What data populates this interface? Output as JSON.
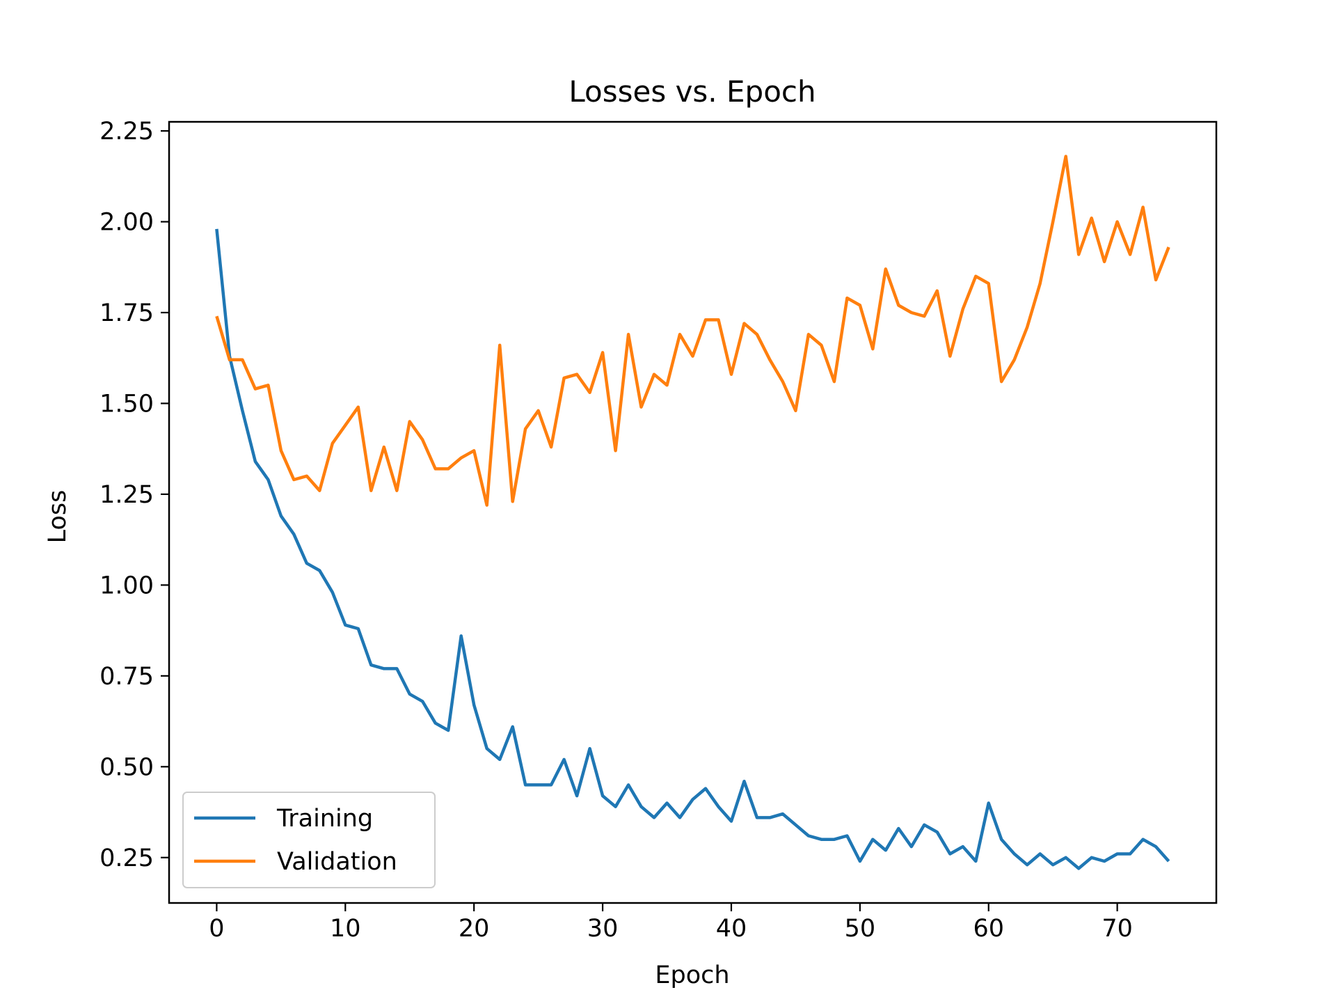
{
  "chart_data": {
    "type": "line",
    "title": "Losses vs. Epoch",
    "xlabel": "Epoch",
    "ylabel": "Loss",
    "xlim": [
      -3.7,
      77.7
    ],
    "ylim": [
      0.125,
      2.275
    ],
    "xticks": [
      0,
      10,
      20,
      30,
      40,
      50,
      60,
      70
    ],
    "xtick_labels": [
      "0",
      "10",
      "20",
      "30",
      "40",
      "50",
      "60",
      "70"
    ],
    "yticks": [
      0.25,
      0.5,
      0.75,
      1.0,
      1.25,
      1.5,
      1.75,
      2.0,
      2.25
    ],
    "ytick_labels": [
      "0.25",
      "0.50",
      "0.75",
      "1.00",
      "1.25",
      "1.50",
      "1.75",
      "2.00",
      "2.25"
    ],
    "grid": false,
    "legend_position": "lower-left",
    "x": [
      0,
      1,
      2,
      3,
      4,
      5,
      6,
      7,
      8,
      9,
      10,
      11,
      12,
      13,
      14,
      15,
      16,
      17,
      18,
      19,
      20,
      21,
      22,
      23,
      24,
      25,
      26,
      27,
      28,
      29,
      30,
      31,
      32,
      33,
      34,
      35,
      36,
      37,
      38,
      39,
      40,
      41,
      42,
      43,
      44,
      45,
      46,
      47,
      48,
      49,
      50,
      51,
      52,
      53,
      54,
      55,
      56,
      57,
      58,
      59,
      60,
      61,
      62,
      63,
      64,
      65,
      66,
      67,
      68,
      69,
      70,
      71,
      72,
      73,
      74
    ],
    "series": [
      {
        "name": "Training",
        "color": "#1f77b4",
        "values": [
          1.98,
          1.63,
          1.48,
          1.34,
          1.29,
          1.19,
          1.14,
          1.06,
          1.04,
          0.98,
          0.89,
          0.88,
          0.78,
          0.77,
          0.77,
          0.7,
          0.68,
          0.62,
          0.6,
          0.86,
          0.67,
          0.55,
          0.52,
          0.61,
          0.45,
          0.45,
          0.45,
          0.52,
          0.42,
          0.55,
          0.42,
          0.39,
          0.45,
          0.39,
          0.36,
          0.4,
          0.36,
          0.41,
          0.44,
          0.39,
          0.35,
          0.46,
          0.36,
          0.36,
          0.37,
          0.34,
          0.31,
          0.3,
          0.3,
          0.31,
          0.24,
          0.3,
          0.27,
          0.33,
          0.28,
          0.34,
          0.32,
          0.26,
          0.28,
          0.24,
          0.4,
          0.3,
          0.26,
          0.23,
          0.26,
          0.23,
          0.25,
          0.22,
          0.25,
          0.24,
          0.26,
          0.26,
          0.3,
          0.28,
          0.24
        ]
      },
      {
        "name": "Validation",
        "color": "#ff7f0e",
        "values": [
          1.74,
          1.62,
          1.62,
          1.54,
          1.55,
          1.37,
          1.29,
          1.3,
          1.26,
          1.39,
          1.44,
          1.49,
          1.26,
          1.38,
          1.26,
          1.45,
          1.4,
          1.32,
          1.32,
          1.35,
          1.37,
          1.22,
          1.66,
          1.23,
          1.43,
          1.48,
          1.38,
          1.57,
          1.58,
          1.53,
          1.64,
          1.37,
          1.69,
          1.49,
          1.58,
          1.55,
          1.69,
          1.63,
          1.73,
          1.73,
          1.58,
          1.72,
          1.69,
          1.62,
          1.56,
          1.48,
          1.69,
          1.66,
          1.56,
          1.79,
          1.77,
          1.65,
          1.87,
          1.77,
          1.75,
          1.74,
          1.81,
          1.63,
          1.76,
          1.85,
          1.83,
          1.56,
          1.62,
          1.71,
          1.83,
          2.0,
          2.18,
          1.91,
          2.01,
          1.89,
          2.0,
          1.91,
          2.04,
          1.84,
          1.93
        ]
      }
    ]
  }
}
